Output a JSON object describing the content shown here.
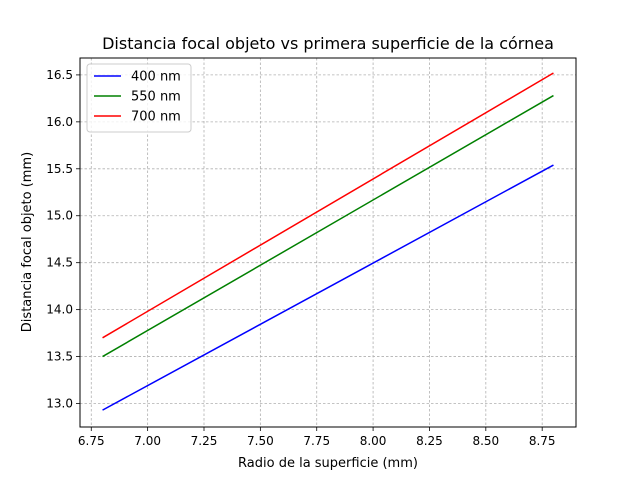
{
  "chart_data": {
    "type": "line",
    "title": "Distancia focal objeto vs primera superficie de la córnea",
    "xlabel": "Radio de la superficie (mm)",
    "ylabel": "Distancia focal objeto (mm)",
    "xlim": [
      6.7,
      8.9
    ],
    "ylim": [
      12.75,
      16.68
    ],
    "xticks": [
      "6.75",
      "7.00",
      "7.25",
      "7.50",
      "7.75",
      "8.00",
      "8.25",
      "8.50",
      "8.75"
    ],
    "yticks": [
      "13.0",
      "13.5",
      "14.0",
      "14.5",
      "15.0",
      "15.5",
      "16.0",
      "16.5"
    ],
    "grid": true,
    "legend_position": "top-left",
    "series": [
      {
        "name": "400 nm",
        "color": "#0000ff",
        "x": [
          6.8,
          8.8
        ],
        "y": [
          12.93,
          15.54
        ]
      },
      {
        "name": "550 nm",
        "color": "#008000",
        "x": [
          6.8,
          8.8
        ],
        "y": [
          13.5,
          16.28
        ]
      },
      {
        "name": "700 nm",
        "color": "#ff0000",
        "x": [
          6.8,
          8.8
        ],
        "y": [
          13.7,
          16.52
        ]
      }
    ]
  }
}
